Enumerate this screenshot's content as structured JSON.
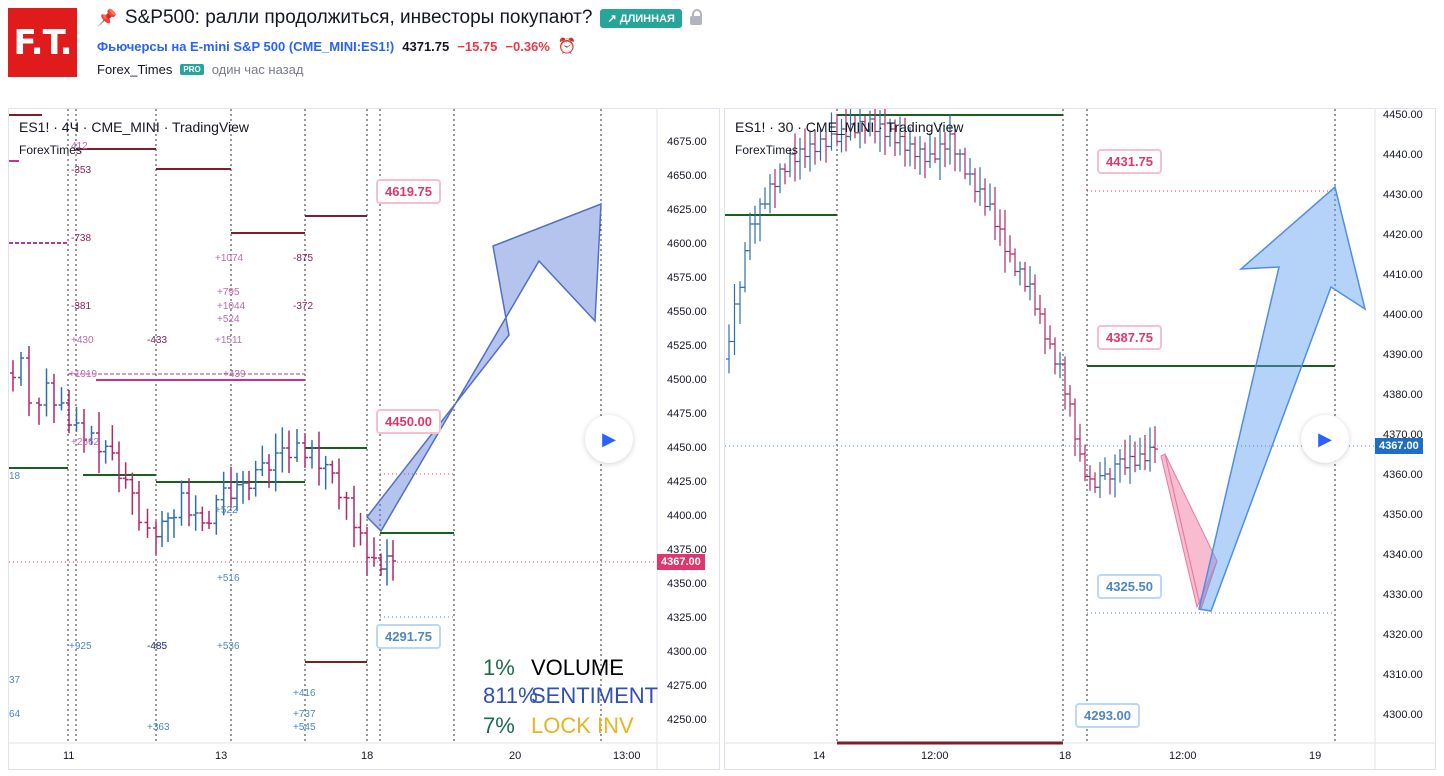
{
  "header": {
    "logo": "F.T.",
    "title": "S&P500: ралли продолжиться, инвесторы покупают?",
    "badge": "↗ ДЛИННАЯ",
    "symbol_name": "Фьючерсы на E-mini S&P 500",
    "symbol_code": "(CME_MINI:ES1!)",
    "price": "4371.75",
    "change": "−15.75",
    "change_pct": "−0.36%",
    "author": "Forex_Times",
    "pro": "PRO",
    "time_ago": "один час назад"
  },
  "colors": {
    "red": "#e0366b",
    "blue": "#4f86c6",
    "green": "#1b5e20",
    "darkred": "#7b1f2a"
  },
  "chart_left": {
    "legend": "ES1! · 4Ч · CME_MINI · TradingView",
    "sub": "ForexTimes",
    "y_ticks": [
      "4675.00",
      "4650.00",
      "4625.00",
      "4600.00",
      "4575.00",
      "4550.00",
      "4525.00",
      "4500.00",
      "4475.00",
      "4450.00",
      "4425.00",
      "4400.00",
      "4375.00",
      "4350.00",
      "4325.00",
      "4300.00",
      "4275.00",
      "4250.00"
    ],
    "x_ticks": [
      "11",
      "13",
      "18",
      "20",
      "13:00"
    ],
    "current_price": "4367.00",
    "callouts": [
      "4619.75",
      "4450.00",
      "4291.75"
    ],
    "stats": [
      {
        "pct": "1%",
        "label": "VOLUME"
      },
      {
        "pct": "811%",
        "label": "SENTIMENT"
      },
      {
        "pct": "7%",
        "label": "LOCK INV"
      }
    ],
    "annotations": [
      "412",
      "-353",
      "-738",
      "+1074",
      "-875",
      "+795",
      "+1044",
      "-372",
      "+524",
      "-381",
      "+430",
      "-433",
      "+1511",
      "+1919",
      "+439",
      "+2662",
      "+522",
      "+516",
      "+925",
      "-485",
      "+536",
      "+416",
      "+737",
      "+545",
      "+363",
      "18",
      "37",
      "64"
    ]
  },
  "chart_right": {
    "legend": "ES1! · 30 · CME_MINI · TradingView",
    "sub": "ForexTimes",
    "y_ticks": [
      "4450.00",
      "4440.00",
      "4430.00",
      "4420.00",
      "4410.00",
      "4400.00",
      "4390.00",
      "4380.00",
      "4370.00",
      "4360.00",
      "4350.00",
      "4340.00",
      "4330.00",
      "4320.00",
      "4310.00",
      "4300.00"
    ],
    "x_ticks": [
      "14",
      "12:00",
      "18",
      "12:00",
      "19"
    ],
    "current_price": "4367.00",
    "callouts": [
      "4431.75",
      "4387.75",
      "4325.50",
      "4293.00"
    ]
  }
}
